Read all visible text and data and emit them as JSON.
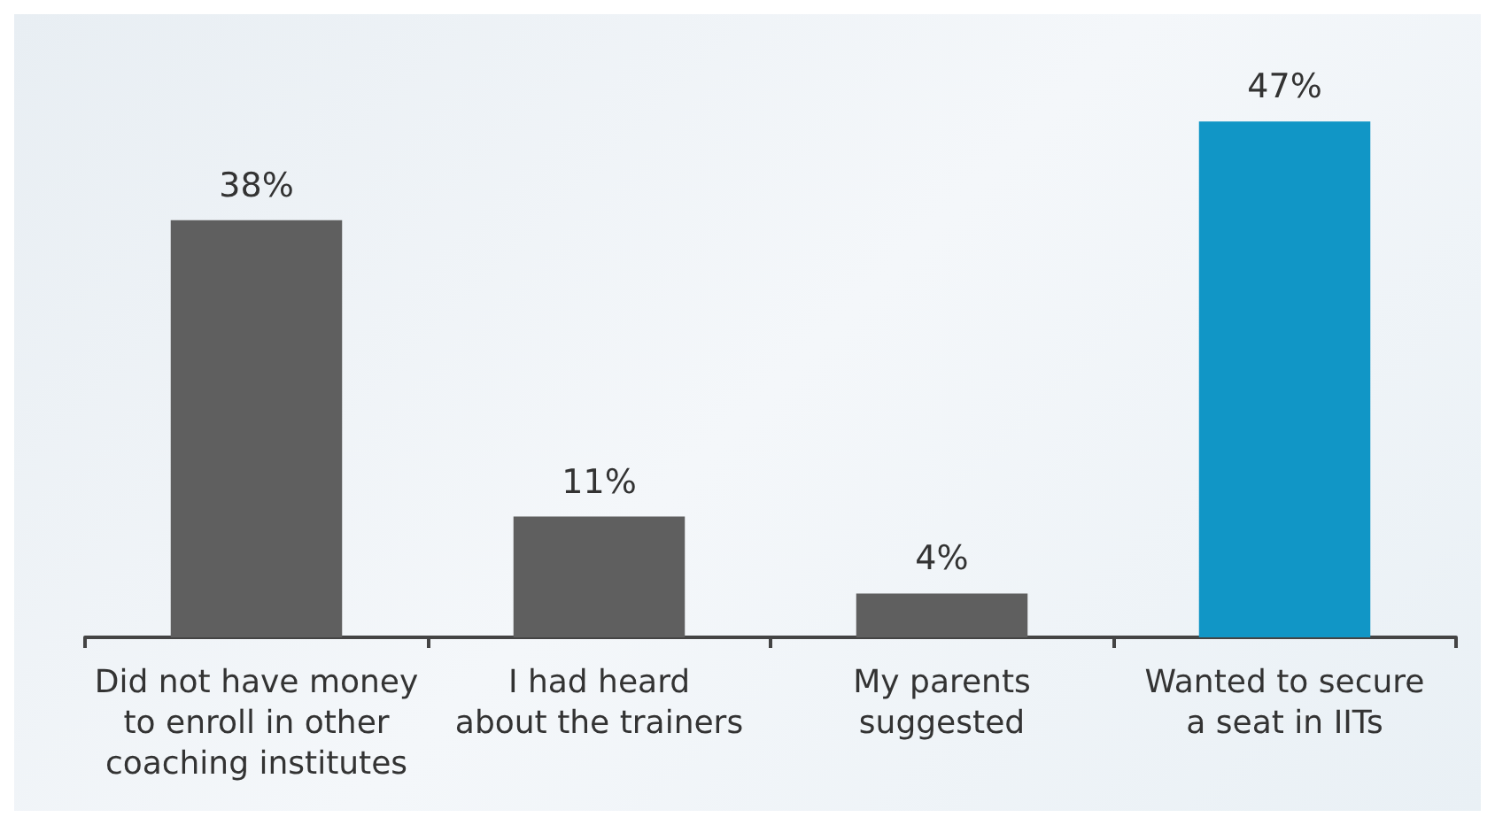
{
  "chart_data": {
    "type": "bar",
    "categories": [
      "Did not have money\nto enroll in other\ncoaching institutes",
      "I had heard\nabout the trainers",
      "My parents\nsuggested",
      "Wanted to secure\na seat in IITs"
    ],
    "values": [
      38,
      11,
      4,
      47
    ],
    "colors": [
      "#5f5f5f",
      "#5f5f5f",
      "#5f5f5f",
      "#1196c6"
    ],
    "value_labels": [
      "38%",
      "11%",
      "4%",
      "47%"
    ]
  }
}
